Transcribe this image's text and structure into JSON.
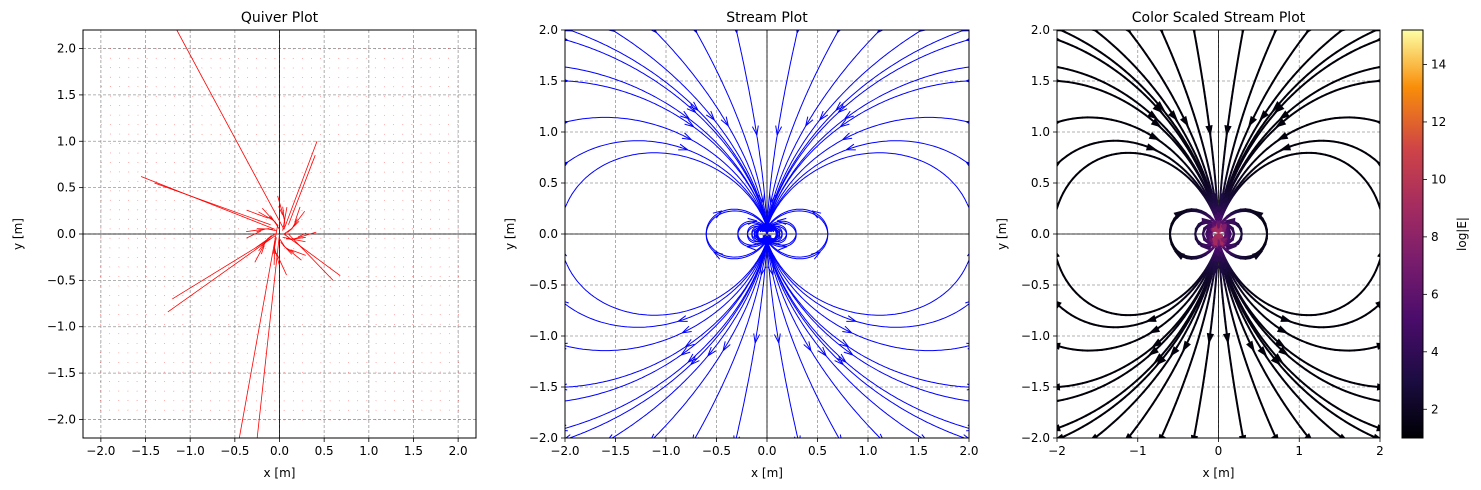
{
  "chart_data": [
    {
      "type": "quiver",
      "title": "Quiver Plot",
      "xlabel": "x [m]",
      "ylabel": "y [m]",
      "xlim": [
        -2.2,
        2.2
      ],
      "ylim": [
        -2.2,
        2.2
      ],
      "xticks": [
        "−2.0",
        "−1.5",
        "−1.0",
        "−0.5",
        "0.0",
        "0.5",
        "1.0",
        "1.5",
        "2.0"
      ],
      "yticks": [
        "−2.0",
        "−1.5",
        "−1.0",
        "−0.5",
        "0.0",
        "0.5",
        "1.0",
        "1.5",
        "2.0"
      ],
      "grid": true,
      "arrow_color": "#ff0000",
      "grid_extent": [
        -2.0,
        2.0
      ],
      "long_arrows": [
        {
          "x0": -1.15,
          "y0": 2.2,
          "x1": 0.05,
          "y1": 0.05
        },
        {
          "x0": -0.45,
          "y0": -2.2,
          "x1": -0.02,
          "y1": 0.1
        },
        {
          "x0": -0.25,
          "y0": -2.2,
          "x1": 0.0,
          "y1": 0.0
        },
        {
          "x0": -1.55,
          "y0": 0.62,
          "x1": -0.05,
          "y1": 0.05
        },
        {
          "x0": -1.25,
          "y0": -0.84,
          "x1": -0.05,
          "y1": -0.02
        },
        {
          "x0": 0.42,
          "y0": 1.0,
          "x1": 0.05,
          "y1": 0.05
        },
        {
          "x0": 0.68,
          "y0": -0.45,
          "x1": 0.05,
          "y1": 0.0
        },
        {
          "x0": -1.4,
          "y0": 0.55,
          "x1": -0.1,
          "y1": 0.1
        },
        {
          "x0": -1.2,
          "y0": -0.7,
          "x1": -0.1,
          "y1": -0.05
        },
        {
          "x0": 0.4,
          "y0": 0.85,
          "x1": 0.1,
          "y1": 0.1
        },
        {
          "x0": 0.6,
          "y0": -0.5,
          "x1": 0.1,
          "y1": 0.0
        }
      ]
    },
    {
      "type": "streamplot",
      "title": "Stream Plot",
      "xlabel": "x [m]",
      "ylabel": "y [m]",
      "xlim": [
        -2.0,
        2.0
      ],
      "ylim": [
        -2.0,
        2.0
      ],
      "xticks": [
        "−2.0",
        "−1.5",
        "−1.0",
        "−0.5",
        "0.0",
        "0.5",
        "1.0",
        "1.5",
        "2.0"
      ],
      "yticks": [
        "−2.0",
        "−1.5",
        "−1.0",
        "−0.5",
        "0.0",
        "0.5",
        "1.0",
        "1.5",
        "2.0"
      ],
      "grid": true,
      "line_color": "#0000ff",
      "field": "dipole along y-axis at origin"
    },
    {
      "type": "streamplot",
      "title": "Color Scaled Stream Plot",
      "xlabel": "x [m]",
      "ylabel": "y [m]",
      "xlim": [
        -2,
        2
      ],
      "ylim": [
        -2,
        2
      ],
      "xticks": [
        "−2",
        "−1",
        "0",
        "1",
        "2"
      ],
      "yticks": [
        "−2.0",
        "−1.5",
        "−1.0",
        "−0.5",
        "0.0",
        "0.5",
        "1.0",
        "1.5",
        "2.0"
      ],
      "grid": true,
      "colormap": "inferno",
      "colorbar": {
        "label": "log|E|",
        "range": [
          1,
          15.2
        ],
        "ticks": [
          "2",
          "4",
          "6",
          "8",
          "10",
          "12",
          "14"
        ]
      }
    }
  ]
}
